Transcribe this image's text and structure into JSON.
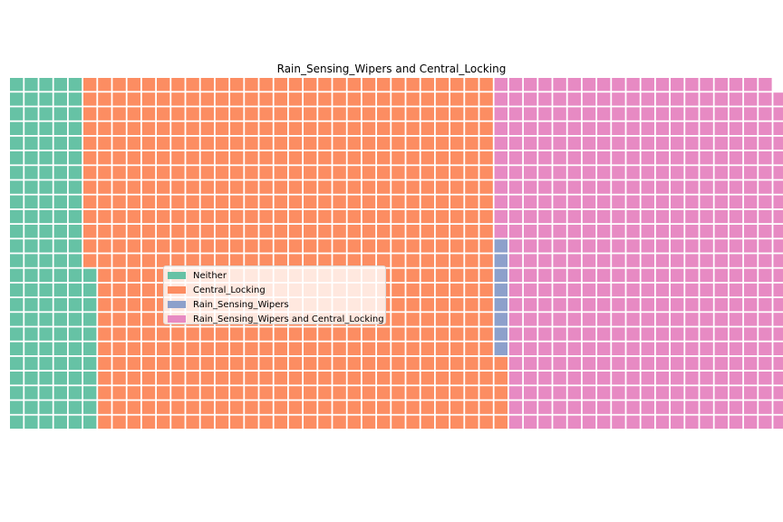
{
  "chart_data": {
    "type": "waffle",
    "title": "Rain_Sensing_Wipers and Central_Locking",
    "rows": 24,
    "columns": 53,
    "series": [
      {
        "name": "Neither",
        "value": 131,
        "color": "#66c2a5"
      },
      {
        "name": "Central_Locking",
        "value": 666,
        "color": "#fc8d62"
      },
      {
        "name": "Rain_Sensing_Wipers",
        "value": 8,
        "color": "#8da0cb"
      },
      {
        "name": "Rain_Sensing_Wipers and Central_Locking",
        "value": 466,
        "color": "#e78ac3"
      }
    ],
    "legend_position": "center"
  }
}
